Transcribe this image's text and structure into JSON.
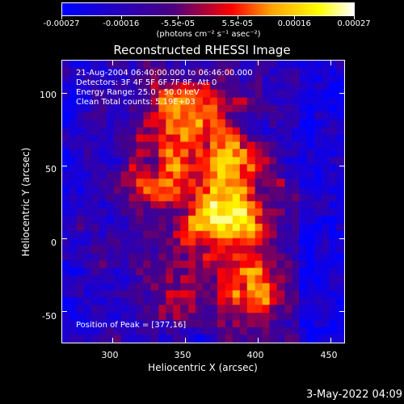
{
  "colorbar": {
    "tick_labels": [
      "-0.00027",
      "-0.00016",
      "-5.5e-05",
      "5.5e-05",
      "0.00016",
      "0.00027"
    ],
    "tick_values": [
      -0.00027,
      -0.00016,
      -5.5e-05,
      5.5e-05,
      0.00016,
      0.00027
    ],
    "range": [
      -0.00027,
      0.00027
    ],
    "units_label": "(photons cm⁻² s⁻¹ asec⁻²)",
    "colors": [
      "#0000ff",
      "#4b0082",
      "#ff0000",
      "#ffa500",
      "#ffff00",
      "#ffffff"
    ]
  },
  "title": "Reconstructed RHESSI Image",
  "info_lines": [
    "21-Aug-2004 06:40:00.000 to 06:46:00.000",
    "Detectors: 3F 4F 5F 6F 7F 8F, Att 0",
    "Energy Range: 25.0 - 50.0 keV",
    "Clean    Total counts: 5.19E+03"
  ],
  "peak_label": "Position of Peak = [377,16]",
  "chart_data": {
    "type": "heatmap",
    "title": "Reconstructed RHESSI Image",
    "xlabel": "Heliocentric X (arcsec)",
    "ylabel": "Heliocentric Y (arcsec)",
    "xlim": [
      265,
      460
    ],
    "ylim": [
      -72,
      123
    ],
    "x_ticks": [
      300,
      350,
      400,
      450
    ],
    "y_ticks": [
      -50,
      0,
      50,
      100
    ],
    "peak": [
      377,
      16
    ],
    "value_range": [
      -0.00027,
      0.00027
    ]
  },
  "axes": {
    "x_tick_labels": [
      "300",
      "350",
      "400",
      "450"
    ],
    "y_tick_labels": [
      "100",
      "50",
      "0",
      "-50"
    ]
  },
  "footer_date": "3-May-2022 04:09"
}
